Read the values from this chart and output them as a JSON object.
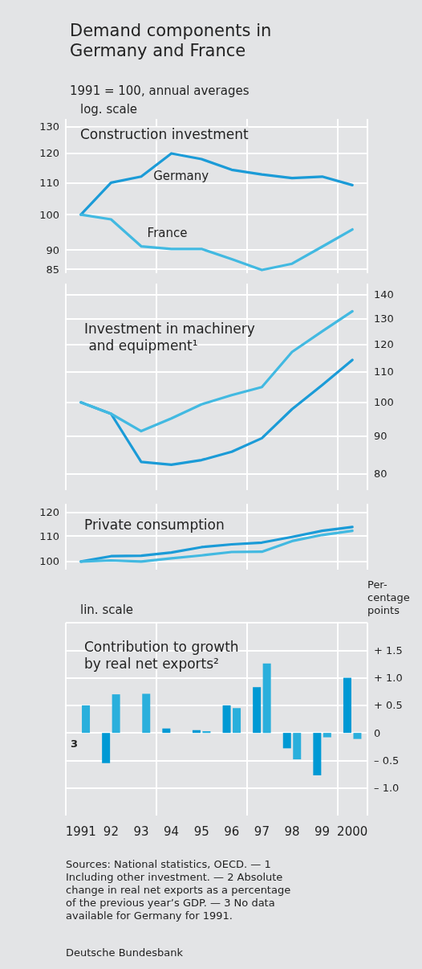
{
  "chart_data": [
    {
      "type": "line",
      "title": "Demand components in Germany and France",
      "subtitle": "1991 = 100, annual averages",
      "annotations": [
        "log. scale",
        "Construction investment"
      ],
      "categories": [
        "1991",
        "92",
        "93",
        "94",
        "95",
        "96",
        "97",
        "98",
        "99",
        "2000"
      ],
      "series": [
        {
          "name": "Germany",
          "color": "#1b9bd7",
          "values": [
            100,
            110,
            112,
            120,
            118,
            114.3,
            112.7,
            111.5,
            112,
            109.2
          ]
        },
        {
          "name": "France",
          "color": "#42b9e1",
          "values": [
            100,
            98.6,
            91,
            90.3,
            90.3,
            87.6,
            84.8,
            86.4,
            90.9,
            95.7
          ]
        }
      ],
      "log": true,
      "ylim": [
        84,
        133
      ],
      "yticks": [
        85,
        90,
        100,
        110,
        120,
        130
      ],
      "grid": true,
      "tick_labels": "y",
      "marker": "none",
      "line_style": "solid"
    },
    {
      "type": "line",
      "title": "Investment in machinery and equipment¹",
      "categories": [
        "1991",
        "92",
        "93",
        "94",
        "95",
        "96",
        "97",
        "98",
        "99",
        "2000"
      ],
      "series": [
        {
          "color": "#1b9bd7",
          "values": [
            100,
            96.5,
            83,
            82.3,
            83.5,
            85.7,
            89.4,
            97.9,
            105.6,
            114.2
          ]
        },
        {
          "color": "#42b9e1",
          "values": [
            100,
            96.5,
            91.4,
            95.1,
            99.4,
            102.3,
            104.9,
            117.1,
            124.9,
            133
          ]
        }
      ],
      "log": true,
      "ylim": [
        76,
        145
      ],
      "yticks": [
        80,
        90,
        100,
        110,
        120,
        130,
        140
      ],
      "grid": true,
      "tick_labels": "y",
      "marker": "none",
      "line_style": "solid"
    },
    {
      "type": "line",
      "title": "Private consumption",
      "categories": [
        "1991",
        "92",
        "93",
        "94",
        "95",
        "96",
        "97",
        "98",
        "99",
        "2000"
      ],
      "series": [
        {
          "color": "#1b9bd7",
          "values": [
            100,
            102,
            102.2,
            103.4,
            105.5,
            106.6,
            107.3,
            109.6,
            112.1,
            113.7
          ]
        },
        {
          "color": "#42b9e1",
          "values": [
            100,
            100.4,
            100,
            101.2,
            102.3,
            103.6,
            103.7,
            107.9,
            110.4,
            112.1
          ]
        }
      ],
      "log": true,
      "ylim": [
        97,
        124
      ],
      "yticks": [
        100,
        110,
        120
      ],
      "grid": true,
      "tick_labels": "y",
      "marker": "none",
      "line_style": "solid"
    },
    {
      "type": "bar",
      "title": "Contribution to growth by real net exports²",
      "ylabel": "Per-\ncentage\npoints",
      "annotations": [
        "lin. scale",
        "3",
        "Sources: National statistics, OECD. — 1 Including other investment. — 2 Absolute change in real net exports as a percentage of the previous year’s GDP. — 3 No data available for Germany for 1991.",
        "Deutsche Bundesbank"
      ],
      "categories": [
        "1991",
        "92",
        "93",
        "94",
        "95",
        "96",
        "97",
        "98",
        "99",
        "2000"
      ],
      "series": [
        {
          "color": "#0099d4",
          "values": [
            null,
            -0.55,
            null,
            0.08,
            0.05,
            0.5,
            0.83,
            -0.28,
            -0.77,
            1.0
          ]
        },
        {
          "color": "#2aafdc",
          "values": [
            0.5,
            0.7,
            0.71,
            null,
            0.03,
            0.45,
            1.26,
            -0.48,
            -0.08,
            -0.11
          ]
        }
      ],
      "ylim": [
        -1.5,
        2.0
      ],
      "yticks": [
        {
          "value": -1,
          "label": "– 1.0"
        },
        {
          "value": -0.5,
          "label": "– 0.5"
        },
        0,
        {
          "value": 0.5,
          "label": "+ 0.5"
        },
        {
          "value": 1,
          "label": "+ 1.0"
        },
        {
          "value": 1.5,
          "label": "+ 1.5"
        },
        {
          "value": 2,
          "label": null
        }
      ],
      "grid": true
    }
  ]
}
